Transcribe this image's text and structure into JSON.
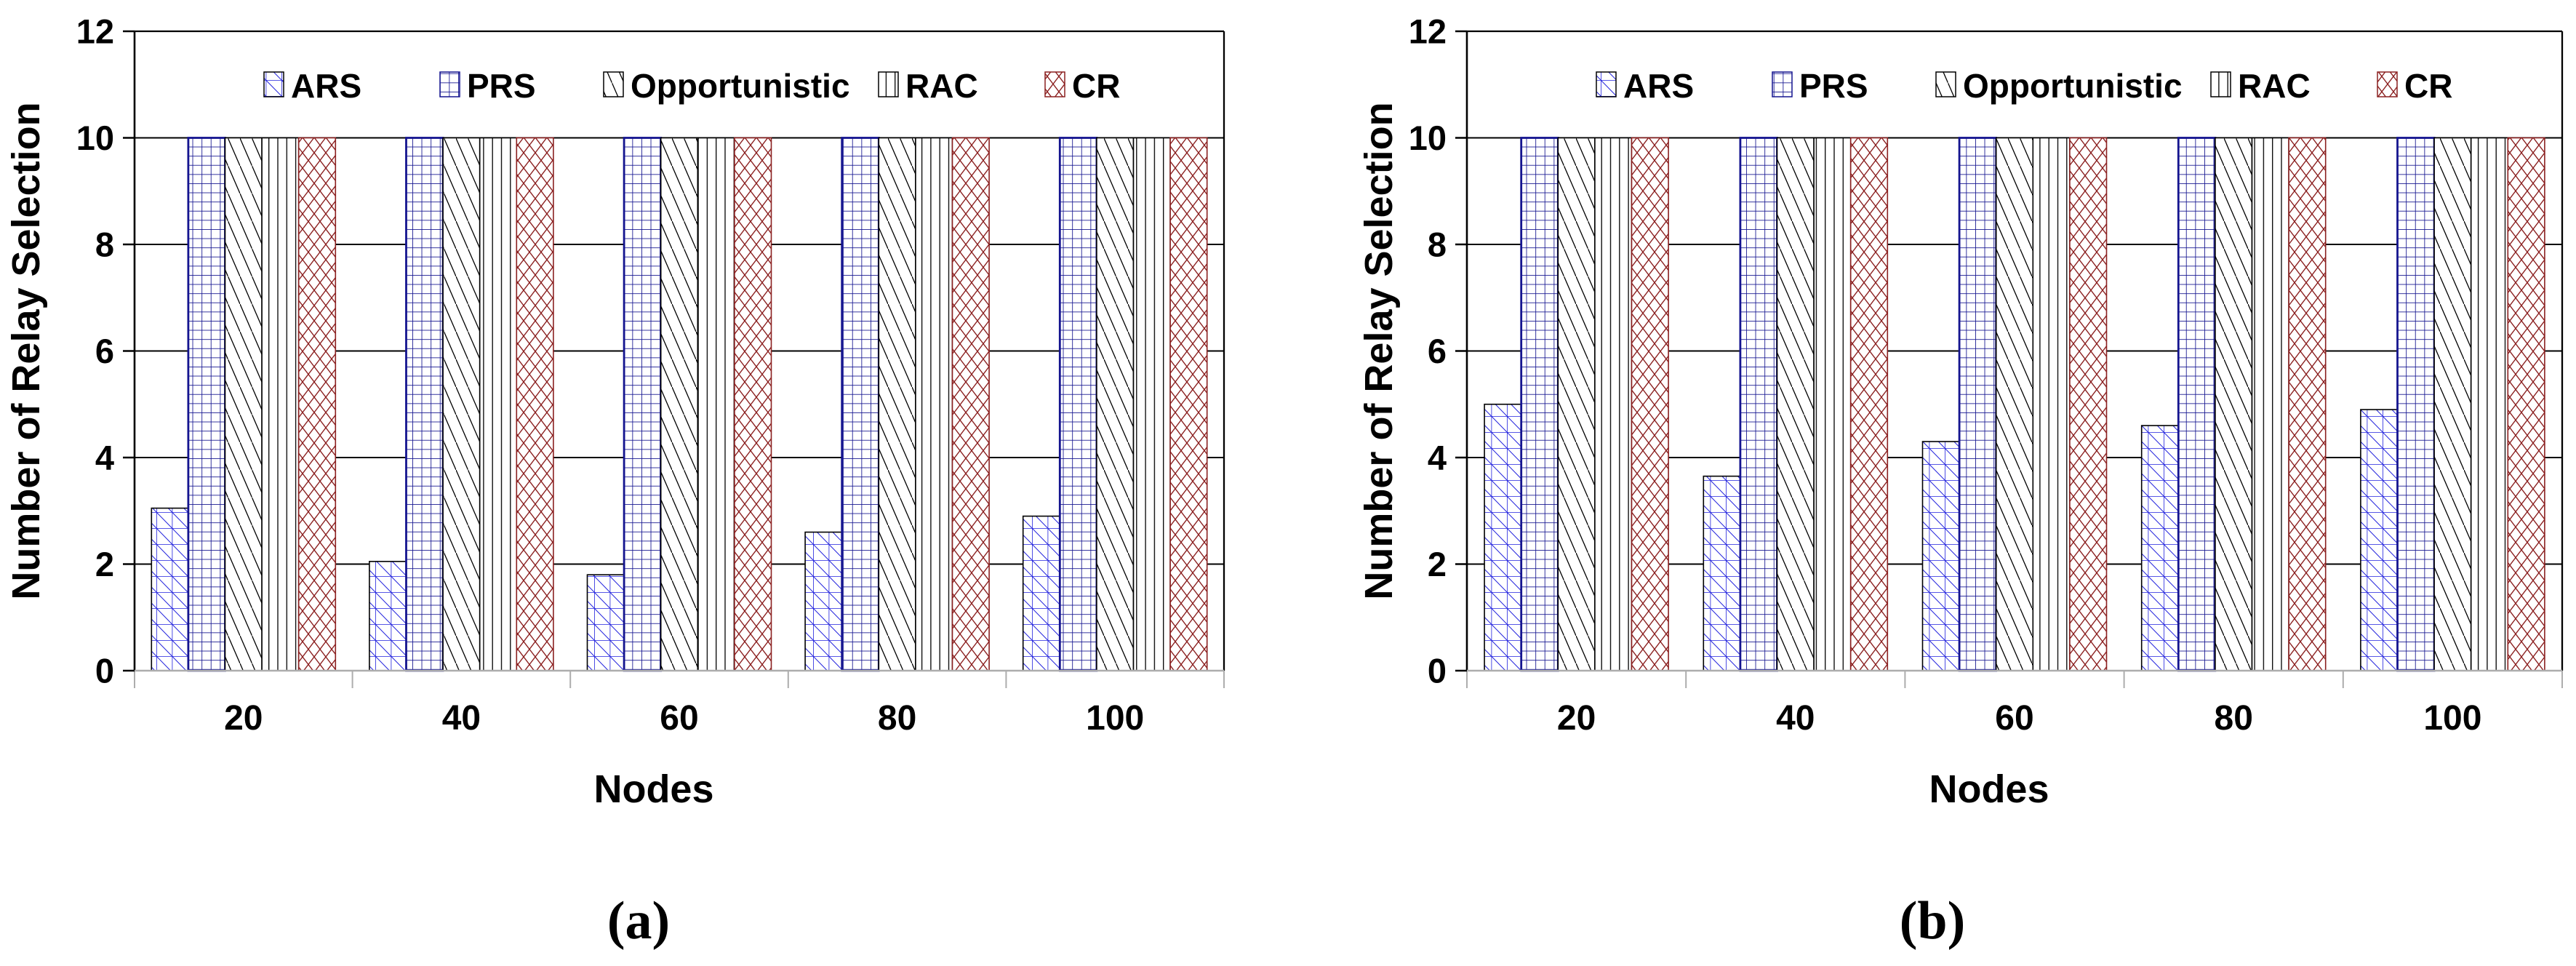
{
  "figure": {
    "background": "#ffffff",
    "axis_line_color": "#adadad",
    "grid_color": "#000000",
    "text_color": "#000000"
  },
  "chart_data": [
    {
      "id": "a",
      "type": "bar",
      "caption": "(a)",
      "title": "",
      "xlabel": "Nodes",
      "ylabel": "Number of Relay Selection",
      "categories": [
        "20",
        "40",
        "60",
        "80",
        "100"
      ],
      "ylim": [
        0,
        12
      ],
      "yticks": [
        0,
        2,
        4,
        6,
        8,
        10,
        12
      ],
      "grid": "horizontal",
      "legend_position": "top-inside",
      "series": [
        {
          "name": "ARS",
          "pattern": "grid-diagonal",
          "color": "#2222dd",
          "values": [
            3.05,
            2.05,
            1.8,
            2.6,
            2.9
          ]
        },
        {
          "name": "PRS",
          "pattern": "grid",
          "color": "#14148f",
          "values": [
            10,
            10,
            10,
            10,
            10
          ]
        },
        {
          "name": "Opportunistic",
          "pattern": "diagonal-down",
          "color": "#000000",
          "values": [
            10,
            10,
            10,
            10,
            10
          ]
        },
        {
          "name": "RAC",
          "pattern": "vertical-lines",
          "color": "#000000",
          "values": [
            10,
            10,
            10,
            10,
            10
          ]
        },
        {
          "name": "CR",
          "pattern": "diamond-crosshatch",
          "color": "#8b2020",
          "values": [
            10,
            10,
            10,
            10,
            10
          ]
        }
      ]
    },
    {
      "id": "b",
      "type": "bar",
      "caption": "(b)",
      "title": "",
      "xlabel": "Nodes",
      "ylabel": "Number of Relay Selection",
      "categories": [
        "20",
        "40",
        "60",
        "80",
        "100"
      ],
      "ylim": [
        0,
        12
      ],
      "yticks": [
        0,
        2,
        4,
        6,
        8,
        10,
        12
      ],
      "grid": "horizontal",
      "legend_position": "top-inside",
      "series": [
        {
          "name": "ARS",
          "pattern": "grid-diagonal",
          "color": "#2222dd",
          "values": [
            5.0,
            3.65,
            4.3,
            4.6,
            4.9
          ]
        },
        {
          "name": "PRS",
          "pattern": "grid",
          "color": "#14148f",
          "values": [
            10,
            10,
            10,
            10,
            10
          ]
        },
        {
          "name": "Opportunistic",
          "pattern": "diagonal-down",
          "color": "#000000",
          "values": [
            10,
            10,
            10,
            10,
            10
          ]
        },
        {
          "name": "RAC",
          "pattern": "vertical-lines",
          "color": "#000000",
          "values": [
            10,
            10,
            10,
            10,
            10
          ]
        },
        {
          "name": "CR",
          "pattern": "diamond-crosshatch",
          "color": "#8b2020",
          "values": [
            10,
            10,
            10,
            10,
            10
          ]
        }
      ]
    }
  ]
}
